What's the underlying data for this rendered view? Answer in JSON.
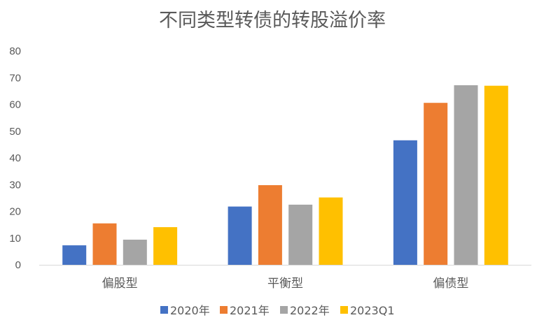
{
  "chart_data": {
    "type": "bar",
    "title": "不同类型转债的转股溢价率",
    "xlabel": "",
    "ylabel": "",
    "categories": [
      "偏股型",
      "平衡型",
      "偏债型"
    ],
    "series": [
      {
        "name": "2020年",
        "values": [
          7.3,
          21.8,
          46.6
        ],
        "color": "#4472C4"
      },
      {
        "name": "2021年",
        "values": [
          15.5,
          29.8,
          60.6
        ],
        "color": "#ED7D31"
      },
      {
        "name": "2022年",
        "values": [
          9.4,
          22.5,
          67.2
        ],
        "color": "#A5A5A5"
      },
      {
        "name": "2023Q1",
        "values": [
          14.1,
          25.2,
          67.0
        ],
        "color": "#FFC000"
      }
    ],
    "ylim": [
      0,
      80
    ],
    "yticks": [
      0,
      10,
      20,
      30,
      40,
      50,
      60,
      70,
      80
    ],
    "grid": false,
    "legend": "bottom"
  }
}
